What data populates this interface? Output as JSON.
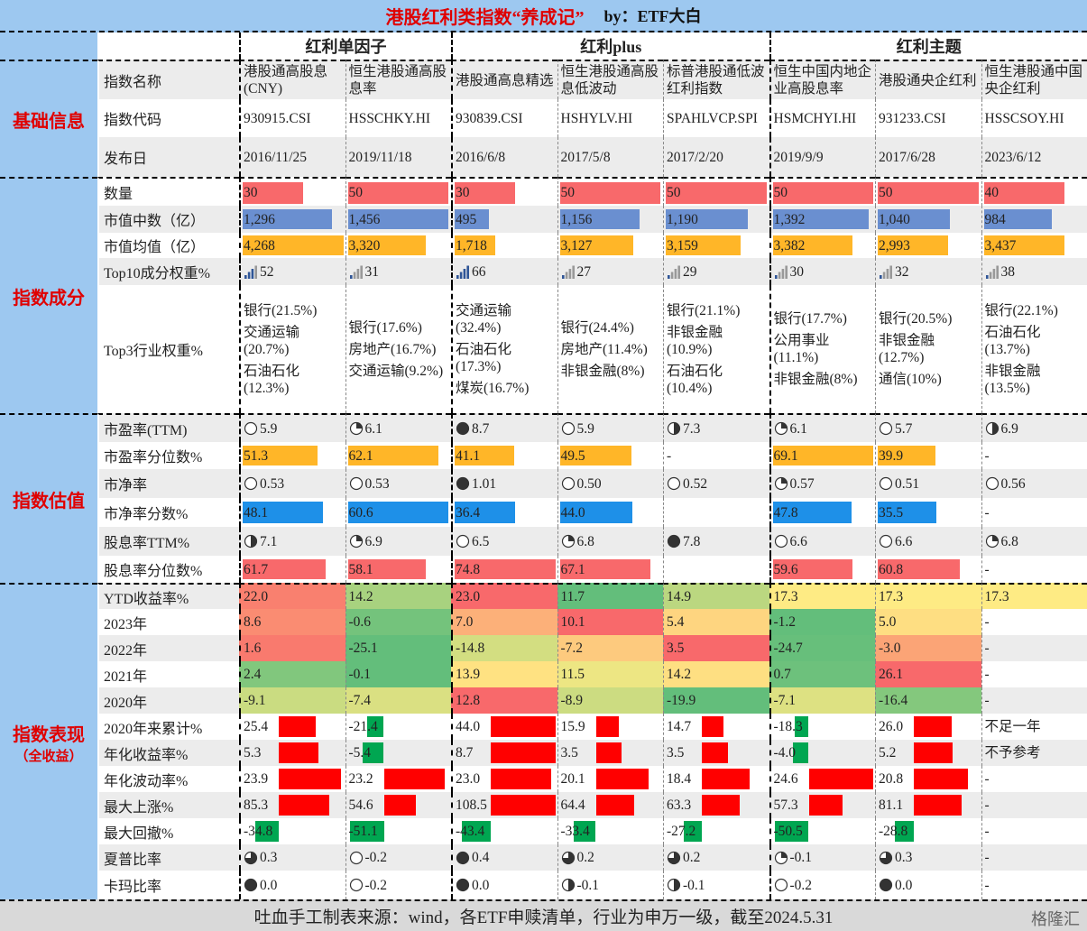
{
  "header": {
    "title": "港股红利类指数“养成记”",
    "byline": "by：ETF大白"
  },
  "groups": [
    {
      "name": "红利单因子",
      "span": 2
    },
    {
      "name": "红利plus",
      "span": 3
    },
    {
      "name": "红利主题",
      "span": 3
    }
  ],
  "sections": [
    {
      "name": "基础信息",
      "rows": [
        {
          "label": "指数名称",
          "style": "text",
          "cells": [
            "港股通高股息(CNY)",
            "恒生港股通高股息率",
            "港股通高息精选",
            "恒生港股通高股息低波动",
            "标普港股通低波红利指数",
            "恒生中国内地企业高股息率",
            "港股通央企红利",
            "恒生港股通中国央企红利"
          ]
        },
        {
          "label": "指数代码",
          "style": "text",
          "cells": [
            "930915.CSI",
            "HSSCHKY.HI",
            "930839.CSI",
            "HSHYLV.HI",
            "SPAHLVCP.SPI",
            "HSMCHYI.HI",
            "931233.CSI",
            "HSSCSOY.HI"
          ]
        },
        {
          "label": "发布日",
          "style": "text",
          "cells": [
            "2016/11/25",
            "2019/11/18",
            "2016/6/8",
            "2017/5/8",
            "2017/2/20",
            "2019/9/9",
            "2017/6/28",
            "2023/6/12"
          ]
        }
      ]
    },
    {
      "name": "指数成分",
      "rows": [
        {
          "label": "数量",
          "style": "bar",
          "color": "#f8696b",
          "cells": [
            "30",
            "50",
            "30",
            "50",
            "50",
            "50",
            "50",
            "40"
          ]
        },
        {
          "label": "市值中数（亿）",
          "style": "bar",
          "color": "#6a8fd0",
          "cells": [
            "1,296",
            "1,456",
            "495",
            "1,156",
            "1,190",
            "1,392",
            "1,040",
            "984"
          ]
        },
        {
          "label": "市值均值（亿）",
          "style": "bar",
          "color": "#ffb628",
          "cells": [
            "4,268",
            "3,320",
            "1,718",
            "3,127",
            "3,159",
            "3,382",
            "2,993",
            "3,437"
          ]
        },
        {
          "label": "Top10成分权重%",
          "style": "signal",
          "color": "#2f5597",
          "cells": [
            "52",
            "31",
            "66",
            "27",
            "29",
            "30",
            "32",
            "38"
          ]
        },
        {
          "label": "Top3行业权重%",
          "style": "lines",
          "cells": [
            [
              "银行(21.5%)",
              "交通运输(20.7%)",
              "石油石化(12.3%)"
            ],
            [
              "银行(17.6%)",
              "房地产(16.7%)",
              "交通运输(9.2%)"
            ],
            [
              "交通运输(32.4%)",
              "石油石化(17.3%)",
              "煤炭(16.7%)"
            ],
            [
              "银行(24.4%)",
              "房地产(11.4%)",
              "非银金融(8%)"
            ],
            [
              "银行(21.1%)",
              "非银金融(10.9%)",
              "石油石化(10.4%)"
            ],
            [
              "银行(17.7%)",
              "公用事业(11.1%)",
              "非银金融(8%)"
            ],
            [
              "银行(20.5%)",
              "非银金融(12.7%)",
              "通信(10%)"
            ],
            [
              "银行(22.1%)",
              "石油石化(13.7%)",
              "非银金融(13.5%)"
            ]
          ]
        }
      ]
    },
    {
      "name": "指数估值",
      "rows": [
        {
          "label": "市盈率(TTM)",
          "style": "ball",
          "color": "#333333",
          "cells": [
            "5.9",
            "6.1",
            "8.7",
            "5.9",
            "7.3",
            "6.1",
            "5.7",
            "6.9"
          ]
        },
        {
          "label": "市盈率分位数%",
          "style": "bar",
          "color": "#ffb628",
          "cells": [
            "51.3",
            "62.1",
            "41.1",
            "49.5",
            "-",
            "69.1",
            "39.9",
            "-"
          ]
        },
        {
          "label": "市净率",
          "style": "ball",
          "color": "#333333",
          "cells": [
            "0.53",
            "0.53",
            "1.01",
            "0.50",
            "0.52",
            "0.57",
            "0.51",
            "0.56"
          ]
        },
        {
          "label": "市净率分数%",
          "style": "bar",
          "color": "#1e90e8",
          "cells": [
            "48.1",
            "60.6",
            "36.4",
            "44.0",
            "",
            "47.8",
            "35.5",
            "-"
          ]
        },
        {
          "label": "股息率TTM%",
          "style": "ball",
          "color": "#333333",
          "cells": [
            "7.1",
            "6.9",
            "6.5",
            "6.8",
            "7.8",
            "6.6",
            "6.6",
            "6.8"
          ]
        },
        {
          "label": "股息率分位数%",
          "style": "bar",
          "color": "#f8696b",
          "cells": [
            "61.7",
            "58.1",
            "74.8",
            "67.1",
            "",
            "59.6",
            "60.8",
            "-"
          ]
        }
      ]
    },
    {
      "name": "指数表现",
      "note": "（全收益）",
      "rows": [
        {
          "label": "YTD收益率%",
          "style": "heat",
          "cells": [
            "22.0",
            "14.2",
            "23.0",
            "11.7",
            "14.9",
            "17.3",
            "17.3",
            "17.3"
          ]
        },
        {
          "label": "2023年",
          "style": "heat",
          "cells": [
            "8.6",
            "-0.6",
            "7.0",
            "10.1",
            "5.4",
            "-1.2",
            "5.0",
            "-"
          ]
        },
        {
          "label": "2022年",
          "style": "heat",
          "cells": [
            "1.6",
            "-25.1",
            "-14.8",
            "-7.2",
            "3.5",
            "-24.7",
            "-3.0",
            "-"
          ]
        },
        {
          "label": "2021年",
          "style": "heat",
          "cells": [
            "2.4",
            "-0.1",
            "13.9",
            "11.5",
            "14.2",
            "0.7",
            "26.1",
            "-"
          ]
        },
        {
          "label": "2020年",
          "style": "heat",
          "cells": [
            "-9.1",
            "-7.4",
            "12.8",
            "-8.9",
            "-19.9",
            "-7.1",
            "-16.4",
            "-"
          ]
        },
        {
          "label": "2020年来累计%",
          "style": "diverge",
          "cells": [
            "25.4",
            "-21.4",
            "44.0",
            "15.9",
            "14.7",
            "-18.3",
            "26.0",
            "不足一年"
          ]
        },
        {
          "label": "年化收益率%",
          "style": "diverge",
          "cells": [
            "5.3",
            "-5.4",
            "8.7",
            "3.5",
            "3.5",
            "-4.0",
            "5.2",
            "不予参考"
          ]
        },
        {
          "label": "年化波动率%",
          "style": "diverge",
          "cells": [
            "23.9",
            "23.2",
            "23.0",
            "20.1",
            "18.4",
            "24.6",
            "20.8",
            "-"
          ]
        },
        {
          "label": "最大上涨%",
          "style": "diverge",
          "cells": [
            "85.3",
            "54.6",
            "108.5",
            "64.4",
            "63.3",
            "57.3",
            "81.1",
            "-"
          ]
        },
        {
          "label": "最大回撤%",
          "style": "diverge",
          "cells": [
            "-34.8",
            "-51.1",
            "-43.4",
            "-33.4",
            "-27.2",
            "-50.5",
            "-28.8",
            "-"
          ]
        },
        {
          "label": "夏普比率",
          "style": "ball",
          "color": "#333333",
          "cells": [
            "0.3",
            "-0.2",
            "0.4",
            "0.2",
            "0.2",
            "-0.1",
            "0.3",
            "-"
          ]
        },
        {
          "label": "卡玛比率",
          "style": "ball",
          "color": "#333333",
          "cells": [
            "0.0",
            "-0.2",
            "0.0",
            "-0.1",
            "-0.1",
            "-0.2",
            "0.0",
            "-"
          ]
        }
      ]
    }
  ],
  "footer": {
    "text": "吐血手工制表来源：wind，各ETF申赎清单，行业为申万一级，截至2024.5.31",
    "brand": "格隆汇"
  }
}
